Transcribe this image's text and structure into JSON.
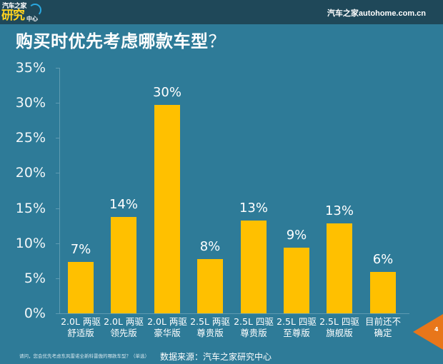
{
  "header": {
    "logo_top": "汽车之家",
    "logo_main": "研究",
    "logo_sub": "中心",
    "site": "汽车之家autohome.com.cn"
  },
  "title": "购买时优先考虑哪款车型",
  "title_suffix": "？",
  "footer": {
    "footnote": "请问，您会优先考虑东风雷诺全新科雷傲的哪款车型？（单选）",
    "source": "数据来源：汽车之家研究中心",
    "page_number": "4"
  },
  "colors": {
    "background": "#2e7b98",
    "header_bar": "#1f4859",
    "bar": "#ffc000",
    "page_flag": "#e8761a"
  },
  "chart_data": {
    "type": "bar",
    "title": "购买时优先考虑哪款车型？",
    "xlabel": "",
    "ylabel": "",
    "ylim": [
      0,
      35
    ],
    "yticks": [
      "0%",
      "5%",
      "10%",
      "15%",
      "20%",
      "25%",
      "30%",
      "35%"
    ],
    "grid": false,
    "legend": null,
    "categories": [
      [
        "2.0L 两驱",
        "舒适版"
      ],
      [
        "2.0L 两驱",
        "领先版"
      ],
      [
        "2.0L 两驱",
        "豪华版"
      ],
      [
        "2.5L 两驱",
        "尊贵版"
      ],
      [
        "2.5L 四驱",
        "尊贵版"
      ],
      [
        "2.5L 四驱",
        "至尊版"
      ],
      [
        "2.5L 四驱",
        "旗舰版"
      ],
      [
        "目前还不",
        "确定"
      ]
    ],
    "values": [
      7.3,
      13.7,
      29.7,
      7.7,
      13.2,
      9.4,
      12.8,
      5.9
    ],
    "data_labels": [
      "7%",
      "14%",
      "30%",
      "8%",
      "13%",
      "9%",
      "13%",
      "6%"
    ]
  }
}
